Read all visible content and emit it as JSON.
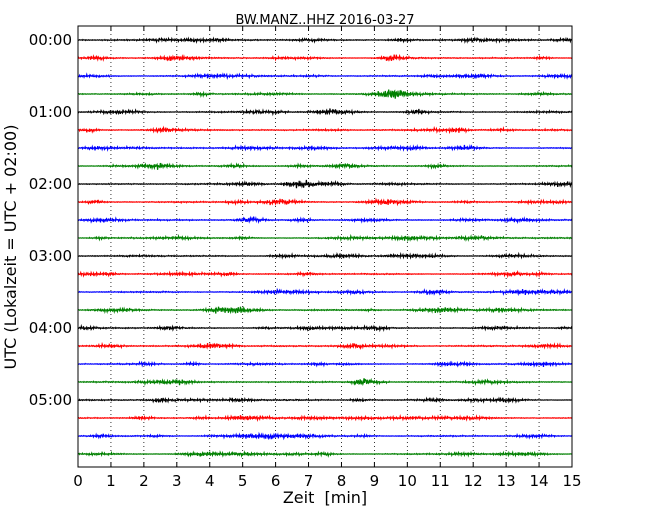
{
  "chart_data": {
    "type": "line",
    "title": "BW.MANZ..HHZ 2016-03-27",
    "xlabel": "Zeit  [min]",
    "ylabel": "UTC (Lokalzeit = UTC + 02:00)",
    "xlim": [
      0,
      15
    ],
    "x_ticks": [
      0,
      1,
      2,
      3,
      4,
      5,
      6,
      7,
      8,
      9,
      10,
      11,
      12,
      13,
      14,
      15
    ],
    "y_tick_labels": [
      "00:00",
      "01:00",
      "02:00",
      "03:00",
      "04:00",
      "05:00"
    ],
    "grid": "vertical dotted",
    "trace_colors": [
      "#000000",
      "#ff0000",
      "#0000ff",
      "#008000"
    ],
    "trace_count": 24,
    "traces_per_hour": 4
  }
}
